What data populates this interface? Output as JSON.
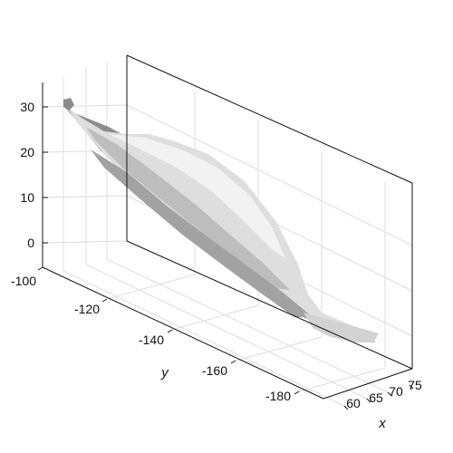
{
  "chart_data": {
    "type": "3d-surface",
    "title": "",
    "xlabel": "x",
    "ylabel": "y",
    "zlabel": "",
    "z_ticks": [
      0,
      10,
      20,
      30
    ],
    "y_ticks": [
      -100,
      -120,
      -140,
      -160,
      -180
    ],
    "x_ticks": [
      60,
      65,
      70,
      75
    ],
    "zlim": [
      -6,
      34
    ],
    "ylim": [
      -100,
      -192
    ],
    "xlim": [
      56,
      78
    ],
    "grid": true,
    "colors": {
      "surface_light": "#f2f2f2",
      "surface_mid": "#c4c4c4",
      "surface_dark": "#8c8c8c",
      "axis": "#111111",
      "grid": "#dddddd"
    },
    "object_ridge": [
      {
        "y": -105,
        "x": 58,
        "z": 30
      },
      {
        "y": -112,
        "x": 62,
        "z": 24
      },
      {
        "y": -125,
        "x": 64,
        "z": 22
      },
      {
        "y": -140,
        "x": 66,
        "z": 14
      },
      {
        "y": -155,
        "x": 68,
        "z": 6
      },
      {
        "y": -170,
        "x": 72,
        "z": -2
      },
      {
        "y": -184,
        "x": 76,
        "z": -6
      }
    ]
  }
}
